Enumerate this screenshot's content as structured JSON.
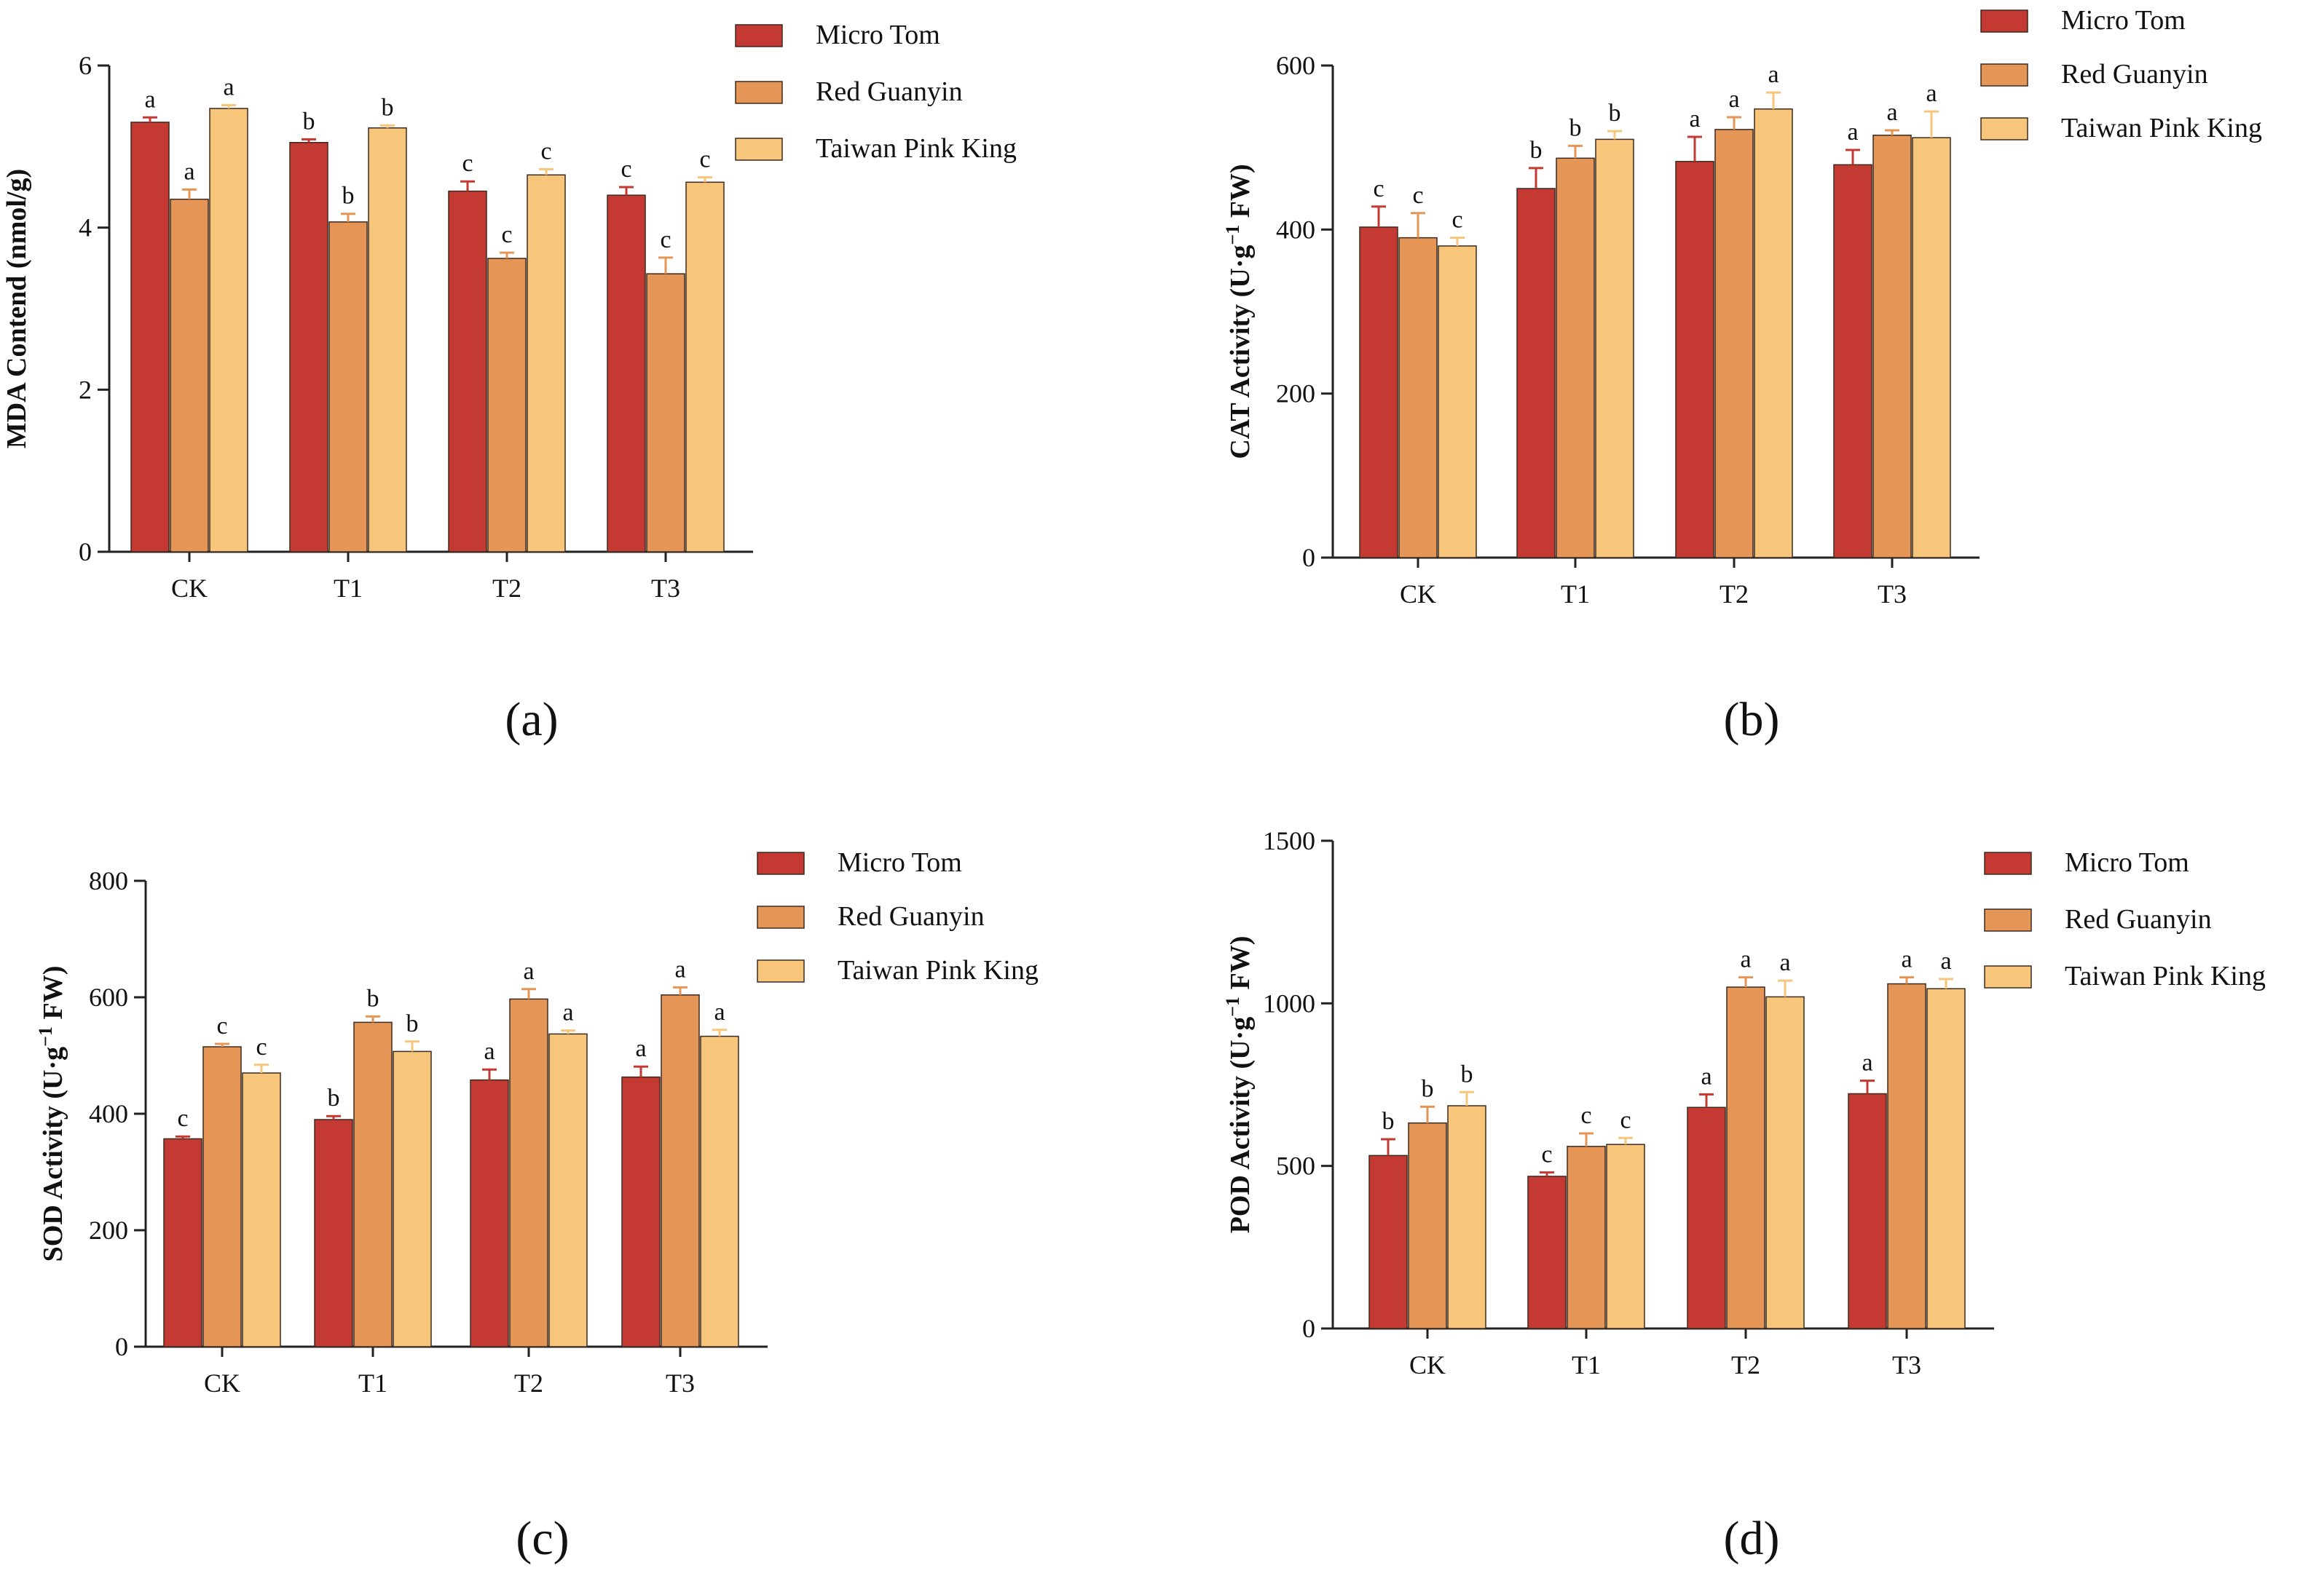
{
  "colors": {
    "Micro Tom": "#c43a32",
    "Red Guanyin": "#e59656",
    "Taiwan Pink King": "#f7c67a",
    "axis": "#222222"
  },
  "chart_data": [
    {
      "panel": "(a)",
      "type": "bar",
      "ylabel": "MDA Contend (nmol/g)",
      "categories": [
        "CK",
        "T1",
        "T2",
        "T3"
      ],
      "ylim": [
        0,
        6
      ],
      "yticks": [
        0,
        2,
        4,
        6
      ],
      "legend": [
        "Micro Tom",
        "Red Guanyin",
        "Taiwan Pink King"
      ],
      "legend_position": "top-right",
      "series": [
        {
          "name": "Micro Tom",
          "values": [
            5.3,
            5.05,
            4.45,
            4.4
          ],
          "errors": [
            0.06,
            0.04,
            0.12,
            0.1
          ],
          "labels": [
            "a",
            "b",
            "c",
            "c"
          ]
        },
        {
          "name": "Red Guanyin",
          "values": [
            4.35,
            4.07,
            3.62,
            3.43
          ],
          "errors": [
            0.12,
            0.1,
            0.07,
            0.2
          ],
          "labels": [
            "a",
            "b",
            "c",
            "c"
          ]
        },
        {
          "name": "Taiwan Pink King",
          "values": [
            5.47,
            5.23,
            4.65,
            4.56
          ],
          "errors": [
            0.04,
            0.03,
            0.07,
            0.06
          ],
          "labels": [
            "a",
            "b",
            "c",
            "c"
          ]
        }
      ]
    },
    {
      "panel": "(b)",
      "type": "bar",
      "ylabel": "CAT Activity (U·g",
      "ylabel_sup": "−1",
      "ylabel_end": " FW)",
      "categories": [
        "CK",
        "T1",
        "T2",
        "T3"
      ],
      "ylim": [
        0,
        600
      ],
      "yticks": [
        0,
        200,
        400,
        600
      ],
      "legend": [
        "Micro Tom",
        "Red Guanyin",
        "Taiwan Pink King"
      ],
      "legend_position": "top-right",
      "series": [
        {
          "name": "Micro Tom",
          "values": [
            403,
            450,
            483,
            479
          ],
          "errors": [
            25,
            25,
            30,
            18
          ],
          "labels": [
            "c",
            "b",
            "a",
            "a"
          ]
        },
        {
          "name": "Red Guanyin",
          "values": [
            390,
            487,
            522,
            515
          ],
          "errors": [
            30,
            15,
            15,
            6
          ],
          "labels": [
            "c",
            "b",
            "a",
            "a"
          ]
        },
        {
          "name": "Taiwan Pink King",
          "values": [
            380,
            510,
            547,
            512
          ],
          "errors": [
            10,
            10,
            20,
            32
          ],
          "labels": [
            "c",
            "b",
            "a",
            "a"
          ]
        }
      ]
    },
    {
      "panel": "(c)",
      "type": "bar",
      "ylabel": "SOD Activity (U·g",
      "ylabel_sup": "−1",
      "ylabel_end": " FW)",
      "categories": [
        "CK",
        "T1",
        "T2",
        "T3"
      ],
      "ylim": [
        0,
        800
      ],
      "yticks": [
        0,
        200,
        400,
        600,
        800
      ],
      "legend": [
        "Micro Tom",
        "Red Guanyin",
        "Taiwan Pink King"
      ],
      "legend_position": "top-right",
      "series": [
        {
          "name": "Micro Tom",
          "values": [
            357,
            390,
            458,
            463
          ],
          "errors": [
            4,
            6,
            18,
            18
          ],
          "labels": [
            "c",
            "b",
            "a",
            "a"
          ]
        },
        {
          "name": "Red Guanyin",
          "values": [
            515,
            557,
            597,
            604
          ],
          "errors": [
            5,
            10,
            17,
            13
          ],
          "labels": [
            "c",
            "b",
            "a",
            "a"
          ]
        },
        {
          "name": "Taiwan Pink King",
          "values": [
            470,
            507,
            537,
            533
          ],
          "errors": [
            14,
            17,
            6,
            11
          ],
          "labels": [
            "c",
            "b",
            "a",
            "a"
          ]
        }
      ]
    },
    {
      "panel": "(d)",
      "type": "bar",
      "ylabel": "POD Activity (U·g",
      "ylabel_sup": "−1",
      "ylabel_end": " FW)",
      "categories": [
        "CK",
        "T1",
        "T2",
        "T3"
      ],
      "ylim": [
        0,
        1500
      ],
      "yticks": [
        0,
        500,
        1000,
        1500
      ],
      "legend": [
        "Micro Tom",
        "Red Guanyin",
        "Taiwan Pink King"
      ],
      "legend_position": "top-right",
      "series": [
        {
          "name": "Micro Tom",
          "values": [
            532,
            468,
            680,
            722
          ],
          "errors": [
            50,
            12,
            40,
            40
          ],
          "labels": [
            "b",
            "c",
            "a",
            "a"
          ]
        },
        {
          "name": "Red Guanyin",
          "values": [
            632,
            560,
            1050,
            1060
          ],
          "errors": [
            50,
            40,
            30,
            20
          ],
          "labels": [
            "b",
            "c",
            "a",
            "a"
          ]
        },
        {
          "name": "Taiwan Pink King",
          "values": [
            685,
            566,
            1020,
            1045
          ],
          "errors": [
            42,
            20,
            50,
            30
          ],
          "labels": [
            "b",
            "c",
            "a",
            "a"
          ]
        }
      ]
    }
  ]
}
